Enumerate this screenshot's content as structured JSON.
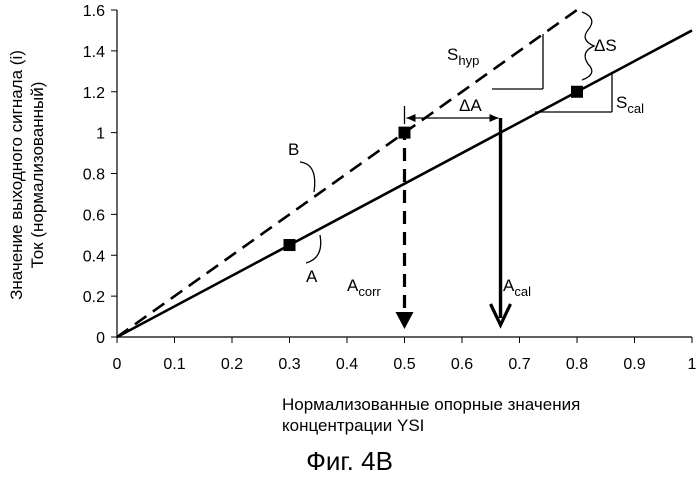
{
  "chart_data": {
    "type": "line",
    "xlabel": [
      "Нормализованные опорные значения",
      "концентрации YSI"
    ],
    "ylabel": [
      "Значение выходного сигнала (i)",
      "Ток (нормализованный)"
    ],
    "xlim": [
      0,
      1
    ],
    "ylim": [
      0,
      1.6
    ],
    "x_ticks": [
      "0",
      "0.1",
      "0.2",
      "0.3",
      "0.4",
      "0.5",
      "0.6",
      "0.7",
      "0.8",
      "0.9",
      "1"
    ],
    "y_ticks": [
      "0",
      "0.2",
      "0.4",
      "0.6",
      "0.8",
      "1",
      "1.2",
      "1.4",
      "1.6"
    ],
    "grid": false,
    "legend": "none",
    "series": [
      {
        "name": "A",
        "style": "solid",
        "color": "#000000",
        "x": [
          0,
          1
        ],
        "y": [
          0,
          1.5
        ]
      },
      {
        "name": "B",
        "style": "dashed",
        "color": "#000000",
        "x": [
          0,
          0.8
        ],
        "y": [
          0,
          1.6
        ]
      }
    ],
    "points": [
      {
        "x": 0.3,
        "y": 0.45
      },
      {
        "x": 0.5,
        "y": 1.0
      },
      {
        "x": 0.8,
        "y": 1.2
      }
    ],
    "annotations": {
      "label_a": "A",
      "label_b": "B",
      "s_hyp": {
        "base": "S",
        "sub": "hyp"
      },
      "s_cal": {
        "base": "S",
        "sub": "cal"
      },
      "delta_s": "ΔS",
      "delta_a": "ΔA",
      "a_corr": {
        "base": "A",
        "sub": "corr",
        "x": 0.5
      },
      "a_cal": {
        "base": "A",
        "sub": "cal",
        "x": 0.667
      }
    }
  },
  "caption": "Фиг. 4В"
}
